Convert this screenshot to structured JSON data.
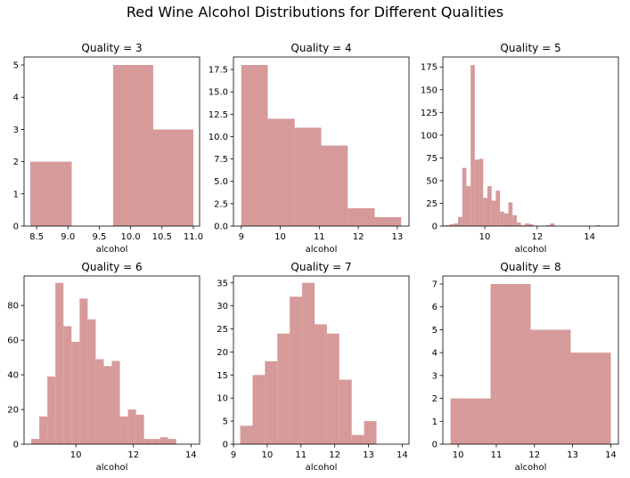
{
  "figure": {
    "suptitle": "Red Wine Alcohol Distributions for Different Qualities",
    "bar_color": "#d69a9a"
  },
  "chart_data": [
    {
      "type": "bar",
      "title": "Quality = 3",
      "xlabel": "alcohol",
      "ylabel": "",
      "xlim": [
        8.3,
        11.1
      ],
      "ylim": [
        0,
        5.25
      ],
      "xticks": [
        8.5,
        9.0,
        9.5,
        10.0,
        10.5,
        11.0
      ],
      "xticklabels": [
        "8.5",
        "9.0",
        "9.5",
        "10.0",
        "10.5",
        "11.0"
      ],
      "yticks": [
        0,
        1,
        2,
        3,
        4,
        5
      ],
      "yticklabels": [
        "0",
        "1",
        "2",
        "3",
        "4",
        "5"
      ],
      "bins": [
        {
          "x0": 8.4,
          "x1": 9.06,
          "count": 2
        },
        {
          "x0": 9.06,
          "x1": 9.72,
          "count": 0
        },
        {
          "x0": 9.72,
          "x1": 10.36,
          "count": 5
        },
        {
          "x0": 10.36,
          "x1": 11.0,
          "count": 3
        }
      ]
    },
    {
      "type": "bar",
      "title": "Quality = 4",
      "xlabel": "alcohol",
      "ylabel": "",
      "xlim": [
        8.8,
        13.3
      ],
      "ylim": [
        0,
        18.9
      ],
      "xticks": [
        9,
        10,
        11,
        12,
        13
      ],
      "xticklabels": [
        "9",
        "10",
        "11",
        "12",
        "13"
      ],
      "yticks": [
        0,
        2.5,
        5.0,
        7.5,
        10.0,
        12.5,
        15.0,
        17.5
      ],
      "yticklabels": [
        "0.0",
        "2.5",
        "5.0",
        "7.5",
        "10.0",
        "12.5",
        "15.0",
        "17.5"
      ],
      "bins": [
        {
          "x0": 9.0,
          "x1": 9.68,
          "count": 18
        },
        {
          "x0": 9.68,
          "x1": 10.37,
          "count": 12
        },
        {
          "x0": 10.37,
          "x1": 11.05,
          "count": 11
        },
        {
          "x0": 11.05,
          "x1": 11.73,
          "count": 9
        },
        {
          "x0": 11.73,
          "x1": 12.42,
          "count": 2
        },
        {
          "x0": 12.42,
          "x1": 13.1,
          "count": 1
        }
      ]
    },
    {
      "type": "bar",
      "title": "Quality = 5",
      "xlabel": "alcohol",
      "ylabel": "",
      "xlim": [
        8.4,
        15.1
      ],
      "ylim": [
        0,
        186
      ],
      "xticks": [
        10,
        12,
        14
      ],
      "xticklabels": [
        "10",
        "12",
        "14"
      ],
      "yticks": [
        0,
        25,
        50,
        75,
        100,
        125,
        150,
        175
      ],
      "yticklabels": [
        "0",
        "25",
        "50",
        "75",
        "100",
        "125",
        "150",
        "175"
      ],
      "bin_start": 8.5,
      "bin_width": 0.16,
      "counts": [
        1,
        2,
        3,
        10,
        64,
        44,
        177,
        73,
        74,
        31,
        44,
        28,
        39,
        16,
        14,
        26,
        12,
        4,
        1,
        3,
        2,
        0,
        0,
        0,
        1,
        3,
        0,
        0,
        0,
        0,
        0,
        0,
        0,
        0,
        0,
        0,
        1
      ]
    },
    {
      "type": "bar",
      "title": "Quality = 6",
      "xlabel": "alcohol",
      "ylabel": "",
      "xlim": [
        8.2,
        14.3
      ],
      "ylim": [
        0,
        97
      ],
      "xticks": [
        10,
        12,
        14
      ],
      "xticklabels": [
        "10",
        "12",
        "14"
      ],
      "yticks": [
        0,
        20,
        40,
        60,
        80
      ],
      "yticklabels": [
        "0",
        "20",
        "40",
        "60",
        "80"
      ],
      "bin_start": 8.45,
      "bin_width": 0.28,
      "counts": [
        3,
        16,
        39,
        93,
        68,
        59,
        84,
        72,
        49,
        45,
        48,
        16,
        20,
        17,
        3,
        3,
        4,
        3
      ]
    },
    {
      "type": "bar",
      "title": "Quality = 7",
      "xlabel": "alcohol",
      "ylabel": "",
      "xlim": [
        9.0,
        14.2
      ],
      "ylim": [
        0,
        36.5
      ],
      "xticks": [
        9,
        10,
        11,
        12,
        13,
        14
      ],
      "xticklabels": [
        "9",
        "10",
        "11",
        "12",
        "13",
        "14"
      ],
      "yticks": [
        0,
        5,
        10,
        15,
        20,
        25,
        30,
        35
      ],
      "yticklabels": [
        "0",
        "5",
        "10",
        "15",
        "20",
        "25",
        "30",
        "35"
      ],
      "bin_start": 9.2,
      "bin_width": 0.367,
      "counts": [
        4,
        15,
        18,
        24,
        32,
        35,
        26,
        24,
        14,
        2,
        5
      ]
    },
    {
      "type": "bar",
      "title": "Quality = 8",
      "xlabel": "alcohol",
      "ylabel": "",
      "xlim": [
        9.6,
        14.2
      ],
      "ylim": [
        0,
        7.35
      ],
      "xticks": [
        10,
        11,
        12,
        13,
        14
      ],
      "xticklabels": [
        "10",
        "11",
        "12",
        "13",
        "14"
      ],
      "yticks": [
        0,
        1,
        2,
        3,
        4,
        5,
        6,
        7
      ],
      "yticklabels": [
        "0",
        "1",
        "2",
        "3",
        "4",
        "5",
        "6",
        "7"
      ],
      "bins": [
        {
          "x0": 9.8,
          "x1": 10.85,
          "count": 2
        },
        {
          "x0": 10.85,
          "x1": 11.9,
          "count": 7
        },
        {
          "x0": 11.9,
          "x1": 12.95,
          "count": 5
        },
        {
          "x0": 12.95,
          "x1": 14.0,
          "count": 4
        }
      ]
    }
  ]
}
